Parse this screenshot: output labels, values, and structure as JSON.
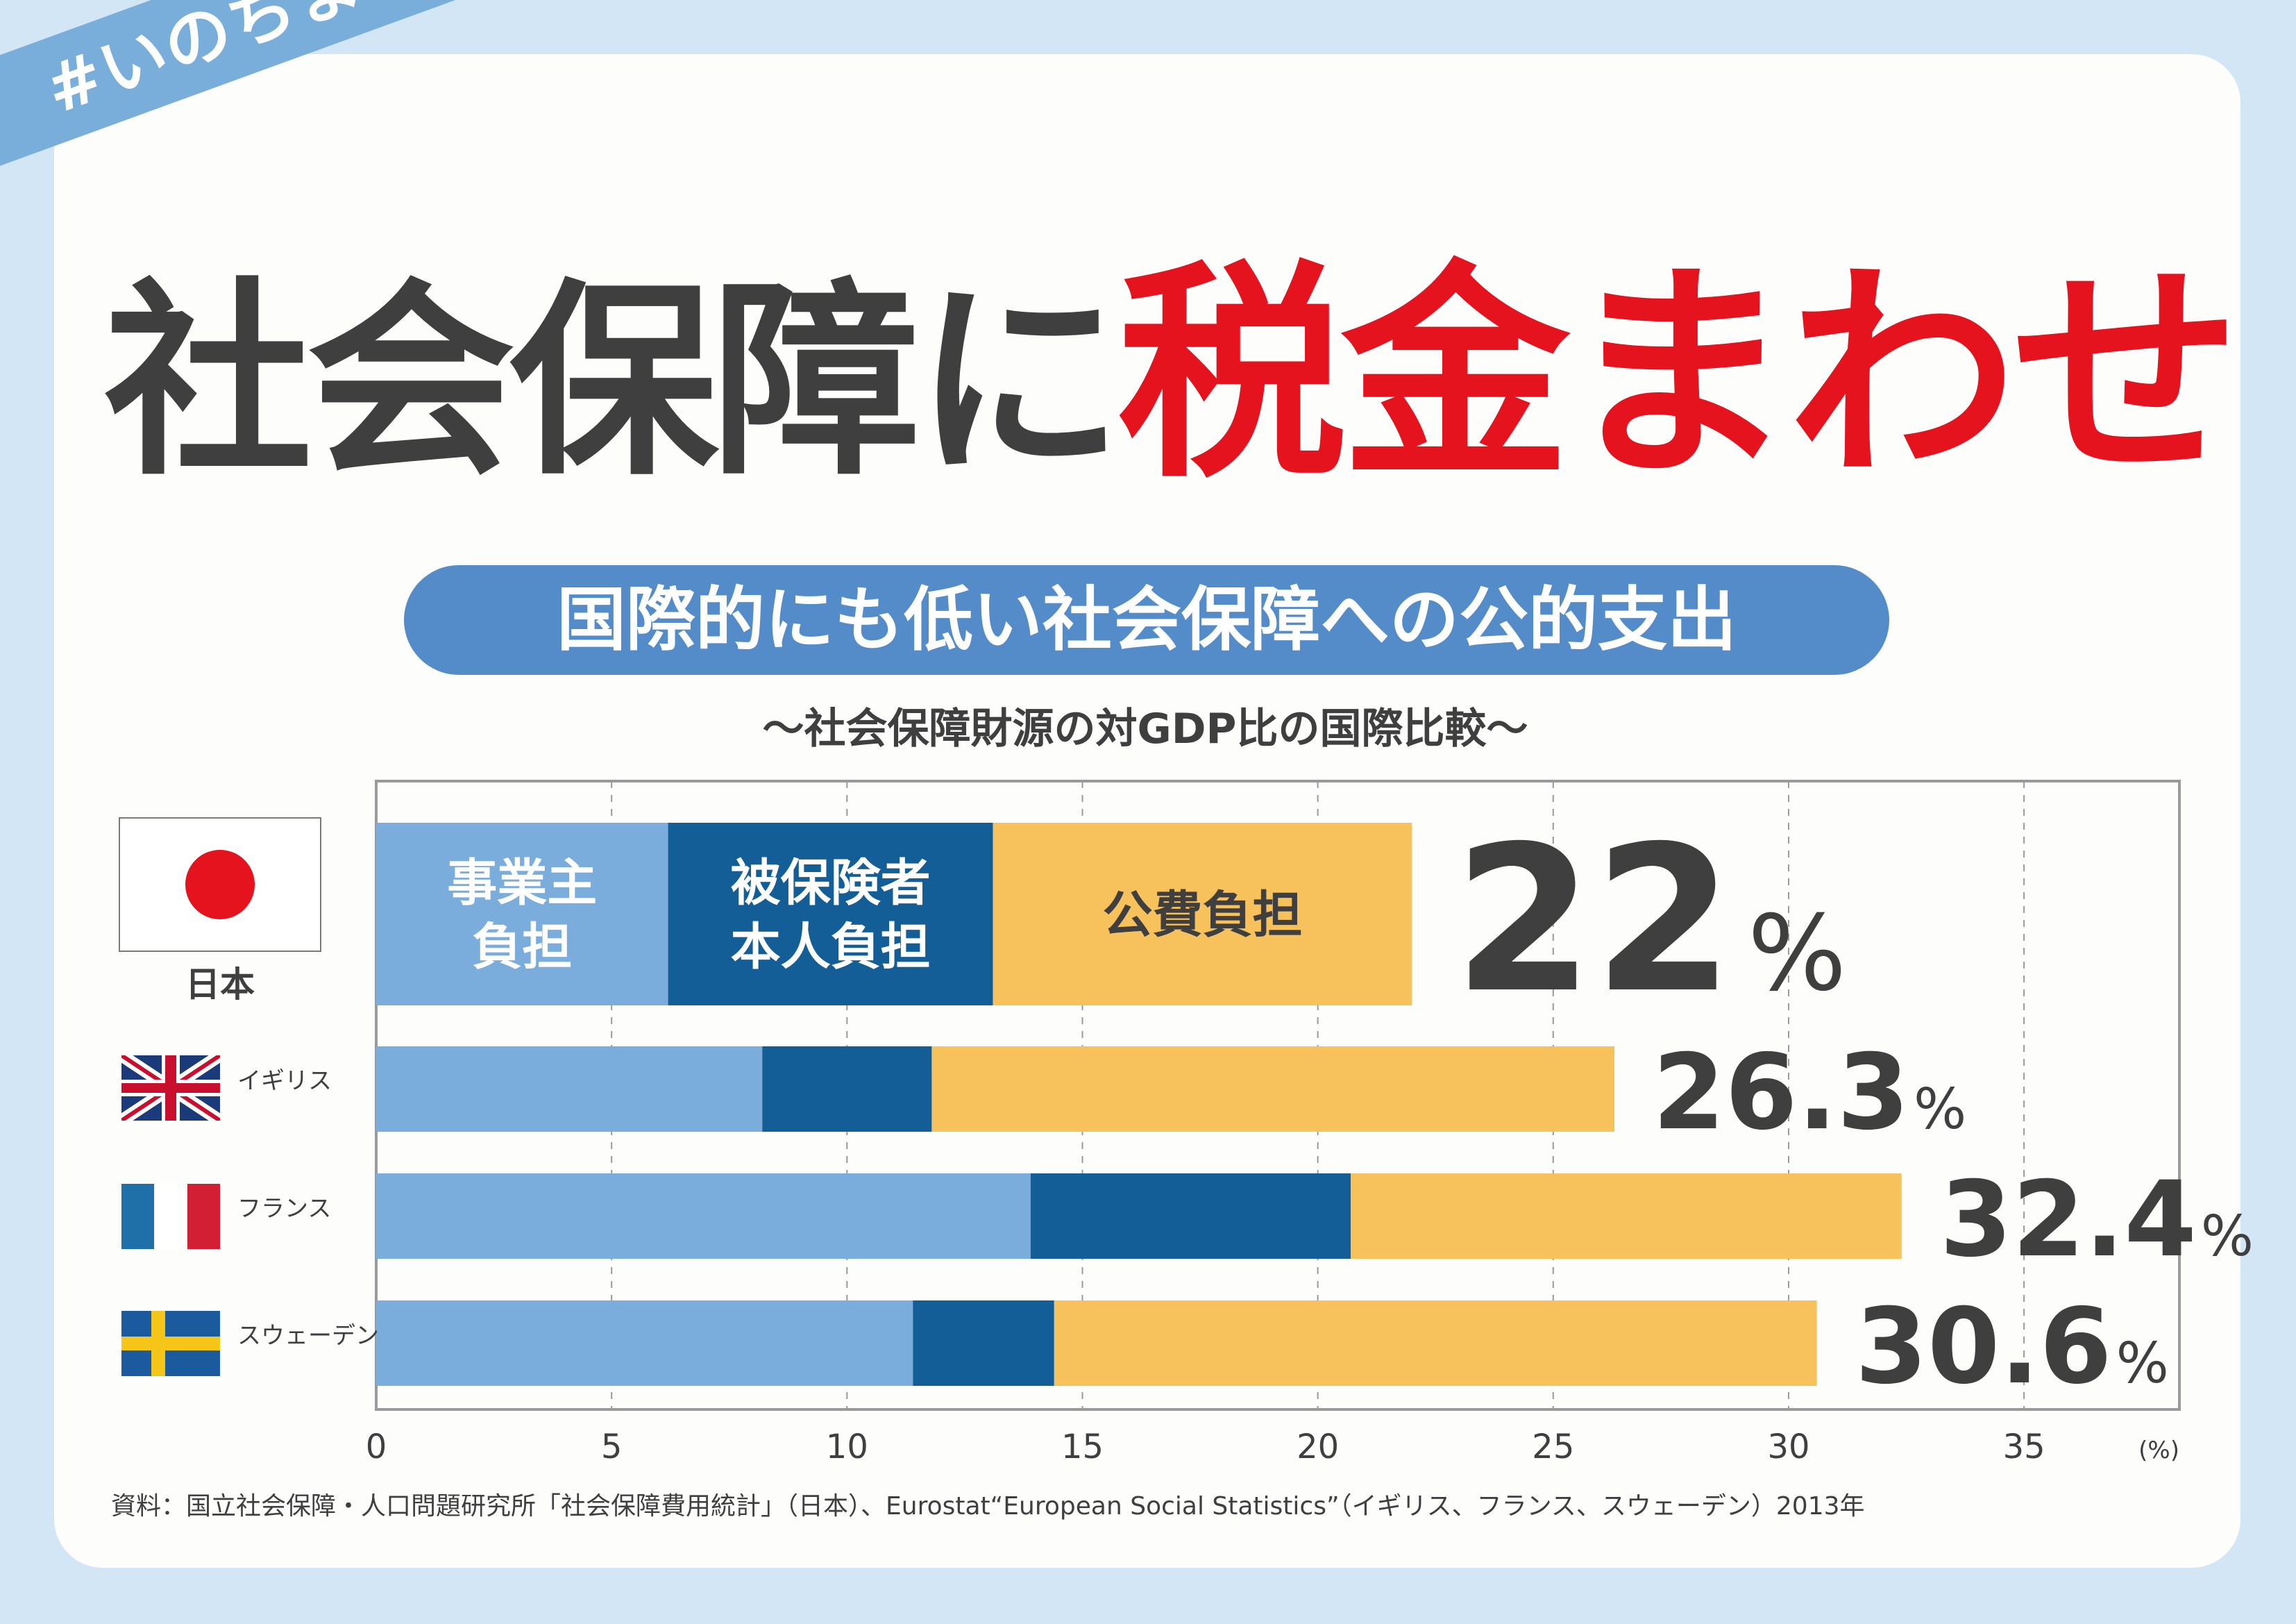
{
  "ribbon": "#いのちまもる",
  "title": {
    "part1": "社会保障に",
    "part2": "税金まわせ"
  },
  "pill": "国際的にも低い社会保障への公的支出",
  "subtitle": "〜社会保障財源の対GDP比の国際比較〜",
  "source": "資料：国立社会保障・人口問題研究所「社会保障費用統計」（日本）、Eurostat“European Social Statistics”（イギリス、フランス、スウェーデン）2013年",
  "colors": {
    "employer": "#7aaddb",
    "insured": "#135e97",
    "public": "#f7c15c",
    "text": "#3f3f3f",
    "red": "#e4131e"
  },
  "chart_data": {
    "type": "bar",
    "orientation": "horizontal",
    "stacked": true,
    "categories": [
      "日本",
      "イギリス",
      "フランス",
      "スウェーデン"
    ],
    "series": [
      {
        "name": "事業主負担",
        "label_lines": [
          "事業主",
          "負担"
        ],
        "values": [
          6.2,
          8.2,
          13.9,
          11.4
        ]
      },
      {
        "name": "被保険者本人負担",
        "label_lines": [
          "被保険者",
          "本人負担"
        ],
        "values": [
          6.9,
          3.6,
          6.8,
          3.0
        ]
      },
      {
        "name": "公費負担",
        "label_lines": [
          "公費負担"
        ],
        "values": [
          8.9,
          14.5,
          11.7,
          16.2
        ]
      }
    ],
    "totals": [
      {
        "num": "22",
        "unit": "%"
      },
      {
        "num": "26.3",
        "unit": "%"
      },
      {
        "num": "32.4",
        "unit": "%"
      },
      {
        "num": "30.6",
        "unit": "%"
      }
    ],
    "xlim": [
      0,
      38.3
    ],
    "xticks": [
      "0",
      "5",
      "10",
      "15",
      "20",
      "25",
      "30",
      "35"
    ],
    "xunit": "(%)",
    "grid": true
  }
}
